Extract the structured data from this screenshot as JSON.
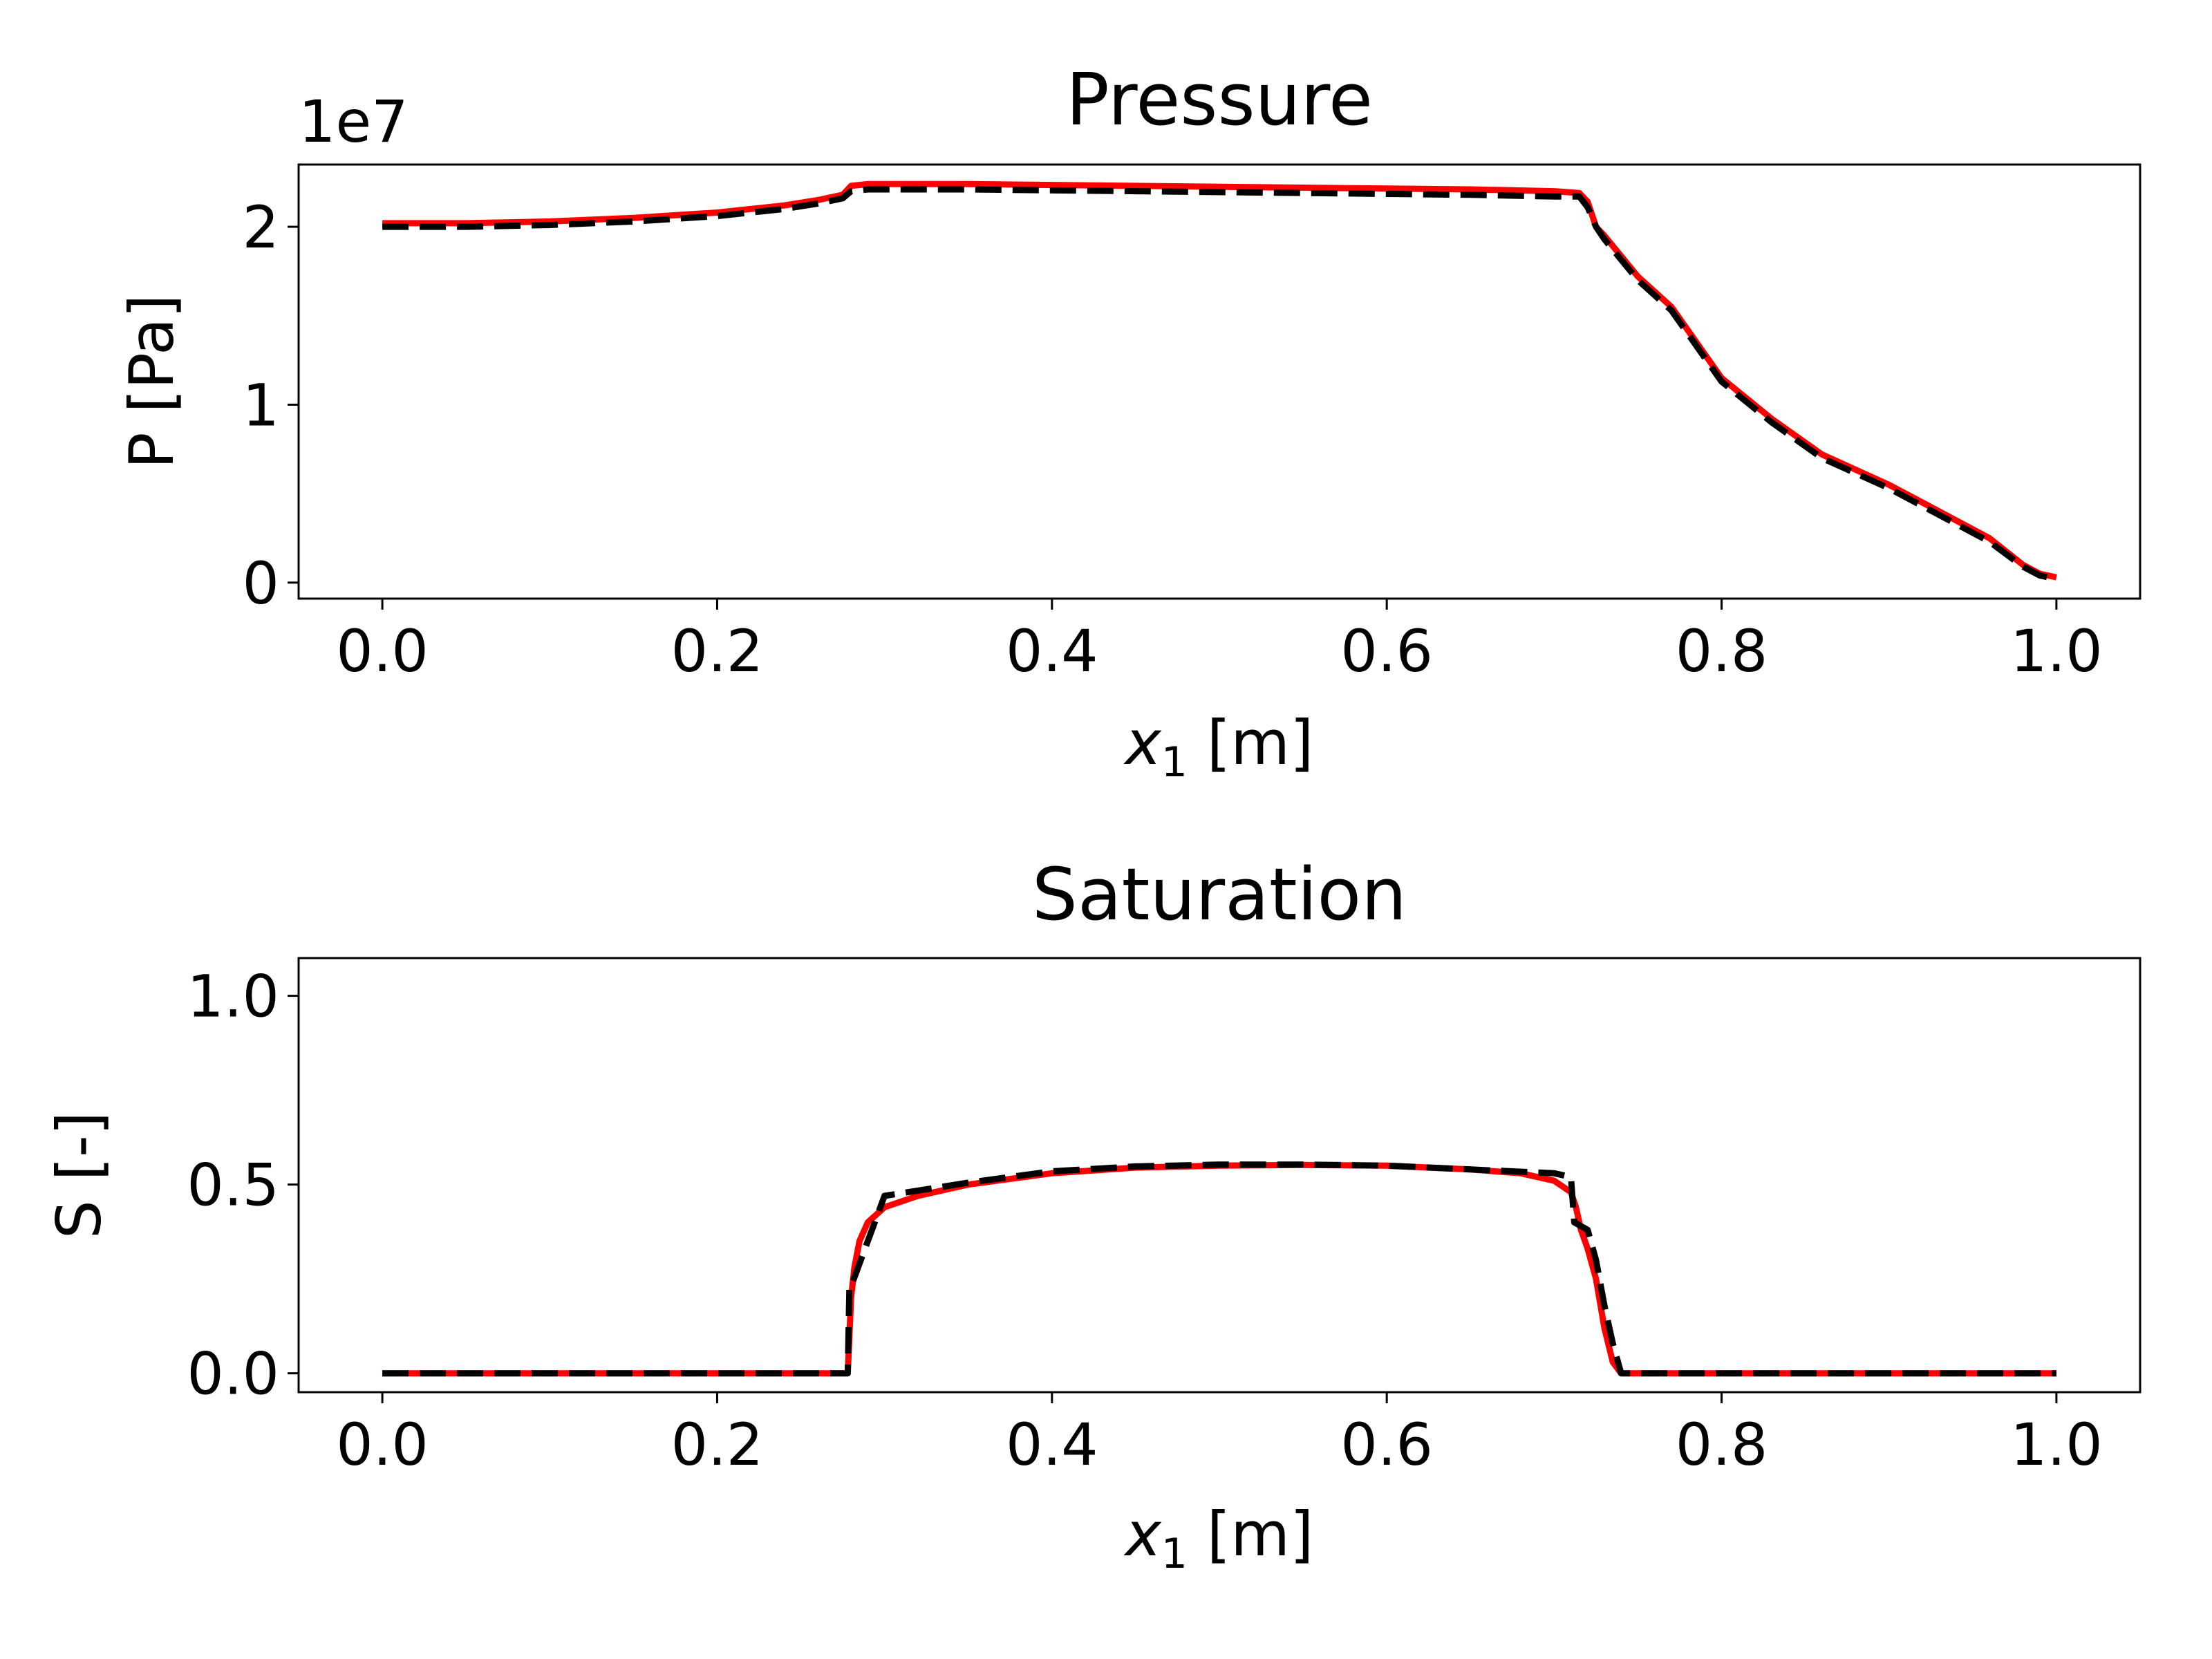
{
  "chart_data": [
    {
      "type": "line",
      "title": "Pressure",
      "xlabel_italic": "x",
      "xlabel_subscript": "1",
      "xlabel_unit": " [m]",
      "ylabel": "P [Pa]",
      "offset_text": "1e7",
      "xlim": [
        -0.05,
        1.05
      ],
      "ylim": [
        -0.09,
        2.35
      ],
      "xticks": [
        0.0,
        0.2,
        0.4,
        0.6,
        0.8,
        1.0
      ],
      "xtick_labels": [
        "0.0",
        "0.2",
        "0.4",
        "0.6",
        "0.8",
        "1.0"
      ],
      "yticks": [
        0,
        1,
        2
      ],
      "ytick_labels": [
        "0",
        "1",
        "2"
      ],
      "grid": false,
      "series": [
        {
          "name": "solution-red",
          "color": "#ff0000",
          "style": "solid",
          "x": [
            0.0,
            0.05,
            0.1,
            0.15,
            0.2,
            0.24,
            0.26,
            0.275,
            0.28,
            0.29,
            0.35,
            0.45,
            0.55,
            0.65,
            0.7,
            0.715,
            0.72,
            0.725,
            0.73,
            0.75,
            0.77,
            0.8,
            0.83,
            0.86,
            0.9,
            0.93,
            0.96,
            0.98,
            0.99,
            1.0
          ],
          "values": [
            2.02,
            2.02,
            2.03,
            2.05,
            2.08,
            2.12,
            2.15,
            2.18,
            2.23,
            2.24,
            2.24,
            2.23,
            2.22,
            2.21,
            2.2,
            2.19,
            2.14,
            2.0,
            1.95,
            1.72,
            1.55,
            1.15,
            0.92,
            0.72,
            0.55,
            0.4,
            0.25,
            0.1,
            0.05,
            0.03
          ]
        },
        {
          "name": "reference-black-dashed",
          "color": "#000000",
          "style": "dashed",
          "x": [
            0.0,
            0.05,
            0.1,
            0.15,
            0.2,
            0.24,
            0.26,
            0.275,
            0.28,
            0.29,
            0.35,
            0.45,
            0.55,
            0.65,
            0.7,
            0.715,
            0.72,
            0.725,
            0.73,
            0.75,
            0.77,
            0.8,
            0.83,
            0.86,
            0.9,
            0.93,
            0.96,
            0.98,
            0.99,
            1.0
          ],
          "values": [
            2.0,
            2.0,
            2.01,
            2.03,
            2.06,
            2.1,
            2.13,
            2.16,
            2.2,
            2.21,
            2.21,
            2.2,
            2.19,
            2.18,
            2.17,
            2.17,
            2.11,
            2.0,
            1.93,
            1.7,
            1.53,
            1.13,
            0.9,
            0.7,
            0.53,
            0.38,
            0.23,
            0.09,
            0.04,
            0.02
          ]
        }
      ]
    },
    {
      "type": "line",
      "title": "Saturation",
      "xlabel_italic": "x",
      "xlabel_subscript": "1",
      "xlabel_unit": " [m]",
      "ylabel": "S [-]",
      "xlim": [
        -0.05,
        1.05
      ],
      "ylim": [
        -0.05,
        1.1
      ],
      "xticks": [
        0.0,
        0.2,
        0.4,
        0.6,
        0.8,
        1.0
      ],
      "xtick_labels": [
        "0.0",
        "0.2",
        "0.4",
        "0.6",
        "0.8",
        "1.0"
      ],
      "yticks": [
        0.0,
        0.5,
        1.0
      ],
      "ytick_labels": [
        "0.0",
        "0.5",
        "1.0"
      ],
      "grid": false,
      "series": [
        {
          "name": "solution-red",
          "color": "#ff0000",
          "style": "solid",
          "x": [
            0.0,
            0.1,
            0.2,
            0.27,
            0.278,
            0.28,
            0.282,
            0.285,
            0.29,
            0.3,
            0.32,
            0.35,
            0.4,
            0.45,
            0.5,
            0.55,
            0.6,
            0.65,
            0.68,
            0.7,
            0.71,
            0.713,
            0.716,
            0.72,
            0.725,
            0.73,
            0.735,
            0.74,
            0.8,
            0.9,
            1.0
          ],
          "values": [
            0.0,
            0.0,
            0.0,
            0.0,
            0.0,
            0.2,
            0.28,
            0.35,
            0.4,
            0.44,
            0.47,
            0.5,
            0.53,
            0.545,
            0.55,
            0.552,
            0.55,
            0.54,
            0.53,
            0.51,
            0.48,
            0.44,
            0.38,
            0.33,
            0.25,
            0.12,
            0.03,
            0.0,
            0.0,
            0.0,
            0.0
          ]
        },
        {
          "name": "reference-black-dashed",
          "color": "#000000",
          "style": "dashed",
          "x": [
            0.0,
            0.1,
            0.2,
            0.27,
            0.278,
            0.279,
            0.28,
            0.3,
            0.35,
            0.4,
            0.45,
            0.5,
            0.55,
            0.6,
            0.65,
            0.7,
            0.71,
            0.712,
            0.72,
            0.725,
            0.73,
            0.735,
            0.74,
            0.8,
            0.9,
            1.0
          ],
          "values": [
            0.0,
            0.0,
            0.0,
            0.0,
            0.0,
            0.23,
            0.23,
            0.47,
            0.505,
            0.535,
            0.548,
            0.553,
            0.553,
            0.55,
            0.54,
            0.53,
            0.52,
            0.4,
            0.38,
            0.3,
            0.18,
            0.08,
            0.0,
            0.0,
            0.0,
            0.0
          ]
        }
      ]
    }
  ]
}
